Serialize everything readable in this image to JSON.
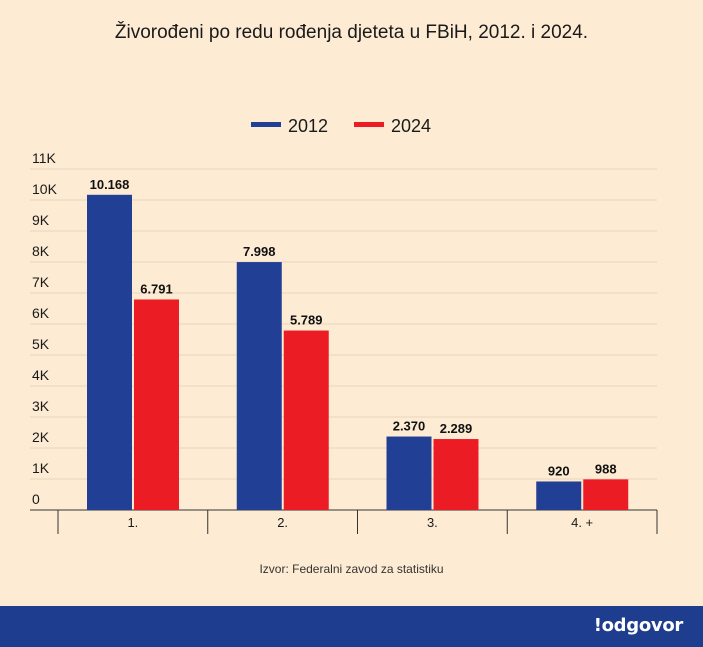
{
  "title": "Živorođeni po redu rođenja djeteta u FBiH, 2012. i 2024.",
  "source": "Izvor: Federalni zavod za statistiku",
  "brand": "!odgovor",
  "colors": {
    "s2012": "#213f94",
    "s2024": "#ec1c24",
    "background": "#fdecd3",
    "footer": "#1f3d8f"
  },
  "chart_data": {
    "type": "bar",
    "title": "Živorođeni po redu rođenja djeteta u FBiH, 2012. i 2024.",
    "categories": [
      "1.",
      "2.",
      "3.",
      "4. +"
    ],
    "series": [
      {
        "name": "2012",
        "values": [
          10168,
          7998,
          2370,
          920
        ],
        "labels": [
          "10.168",
          "7.998",
          "2.370",
          "920"
        ]
      },
      {
        "name": "2024",
        "values": [
          6791,
          5789,
          2289,
          988
        ],
        "labels": [
          "6.791",
          "5.789",
          "2.289",
          "988"
        ]
      }
    ],
    "ylim": [
      0,
      11000
    ],
    "yticks": [
      0,
      1000,
      2000,
      3000,
      4000,
      5000,
      6000,
      7000,
      8000,
      9000,
      10000,
      11000
    ],
    "ytick_labels": [
      "0",
      "1K",
      "2K",
      "3K",
      "4K",
      "5K",
      "6K",
      "7K",
      "8K",
      "9K",
      "10K",
      "11K"
    ],
    "grid": true,
    "legend": "top-center",
    "xlabel": "",
    "ylabel": ""
  }
}
